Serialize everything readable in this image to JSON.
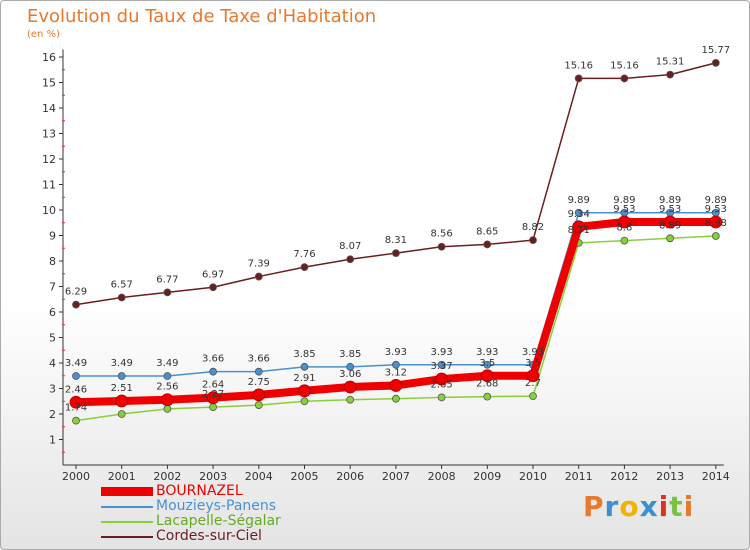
{
  "title": "Evolution du Taux de Taxe d'Habitation",
  "subtitle": "(en %)",
  "logo": {
    "text": "Proxiti",
    "colors": [
      "#e8782b",
      "#3a8fd0",
      "#f0b400",
      "#3a8fd0",
      "#e03020",
      "#7ac143",
      "#e8782b"
    ]
  },
  "chart_data": {
    "type": "line",
    "title": "Evolution du Taux de Taxe d'Habitation",
    "ylabel": "(en %)",
    "xlabel": "",
    "x": [
      "2000",
      "2001",
      "2002",
      "2003",
      "2004",
      "2005",
      "2006",
      "2007",
      "2008",
      "2009",
      "2010",
      "2011",
      "2012",
      "2013",
      "2014"
    ],
    "ylim": [
      0,
      16
    ],
    "yticks": [
      1,
      2,
      3,
      4,
      5,
      6,
      7,
      8,
      9,
      10,
      11,
      12,
      13,
      14,
      15,
      16
    ],
    "legend_position": "bottom-left",
    "series": [
      {
        "name": "BOURNAZEL",
        "color": "#ee0000",
        "values": [
          2.46,
          2.51,
          2.56,
          2.64,
          2.75,
          2.91,
          3.06,
          3.12,
          3.37,
          3.5,
          3.5,
          9.34,
          9.53,
          9.53,
          9.53
        ],
        "labels": [
          "2.46",
          "2.51",
          "2.56",
          "2.64",
          "2.75",
          "2.91",
          "3.06",
          "3.12",
          "3.37",
          "3.5",
          "3.5",
          "9.34",
          "9.53",
          "9.53",
          "9.53"
        ]
      },
      {
        "name": "Mouzieys-Panens",
        "color": "#4a90d0",
        "values": [
          3.49,
          3.49,
          3.49,
          3.66,
          3.66,
          3.85,
          3.85,
          3.93,
          3.93,
          3.93,
          3.93,
          9.89,
          9.89,
          9.89,
          9.89
        ],
        "labels": [
          "3.49",
          "3.49",
          "3.49",
          "3.66",
          "3.66",
          "3.85",
          "3.85",
          "3.93",
          "3.93",
          "3.93",
          "3.93",
          "9.89",
          "9.89",
          "9.89",
          "9.89"
        ]
      },
      {
        "name": "Lacapelle-Ségalar",
        "color": "#88d038",
        "values": [
          1.74,
          2.0,
          2.2,
          2.27,
          2.35,
          2.5,
          2.56,
          2.6,
          2.65,
          2.68,
          2.7,
          8.71,
          8.8,
          8.89,
          8.98
        ],
        "labels": [
          "1.74",
          "",
          "",
          "2.27",
          "",
          "",
          "",
          "",
          "2.65",
          "2.68",
          "2.7",
          "8.71",
          "8.8",
          "8.89",
          "8.98"
        ]
      },
      {
        "name": "Cordes-sur-Ciel",
        "color": "#6b1e1e",
        "values": [
          6.29,
          6.57,
          6.77,
          6.97,
          7.39,
          7.76,
          8.07,
          8.31,
          8.56,
          8.65,
          8.82,
          15.16,
          15.16,
          15.31,
          15.77
        ],
        "labels": [
          "6.29",
          "6.57",
          "6.77",
          "6.97",
          "7.39",
          "7.76",
          "8.07",
          "8.31",
          "8.56",
          "8.65",
          "8.82",
          "15.16",
          "15.16",
          "15.31",
          "15.77"
        ]
      }
    ]
  }
}
